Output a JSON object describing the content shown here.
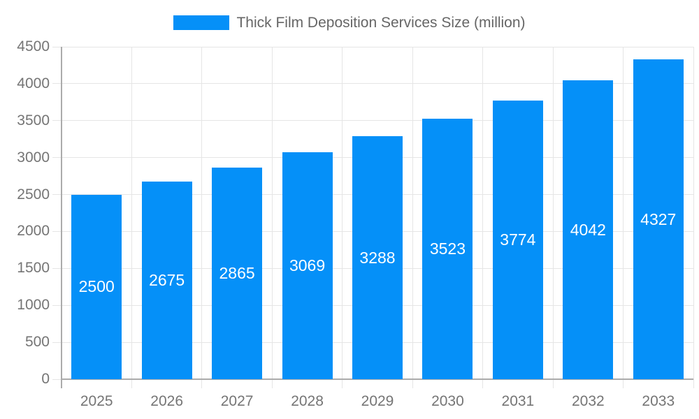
{
  "chart_data": {
    "type": "bar",
    "title": "Thick Film Deposition Services Size (million)",
    "categories": [
      "2025",
      "2026",
      "2027",
      "2028",
      "2029",
      "2030",
      "2031",
      "2032",
      "2033"
    ],
    "values": [
      2500,
      2675,
      2865,
      3069,
      3288,
      3523,
      3774,
      4042,
      4327
    ],
    "xlabel": "",
    "ylabel": "",
    "ylim": [
      0,
      4500
    ],
    "ytick_step": 500,
    "ytick_labels": [
      "0",
      "500",
      "1000",
      "1500",
      "2000",
      "2500",
      "3000",
      "3500",
      "4000",
      "4500"
    ],
    "grid": true,
    "legend_position": "top",
    "value_labels_shown": true
  },
  "colors": {
    "bar": "#0590f8",
    "grid": "#e5e5e5",
    "axis": "#ababab",
    "tick_text": "#757575",
    "legend_text": "#666666",
    "value_text": "#ffffff",
    "background": "#ffffff"
  }
}
